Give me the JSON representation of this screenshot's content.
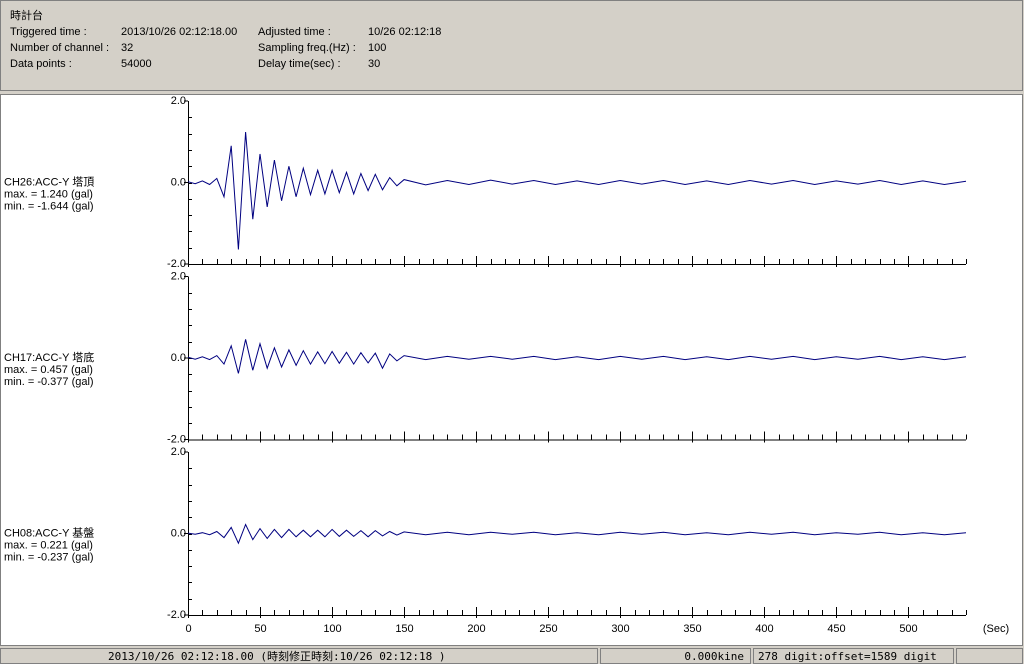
{
  "header": {
    "title": "時計台",
    "fields": [
      [
        "Triggered time :",
        "2013/10/26 02:12:18.00",
        "Adjusted time :",
        "10/26 02:12:18"
      ],
      [
        "Number of channel :",
        "32",
        "Sampling freq.(Hz) :",
        "100"
      ],
      [
        "Data points :",
        "54000",
        "Delay time(sec) :",
        "30"
      ]
    ]
  },
  "chart_data": [
    {
      "type": "line",
      "channel": "CH26:ACC-Y 塔頂",
      "max_label": "max. = 1.240 (gal)",
      "min_label": "min. = -1.644 (gal)",
      "color": "#000080",
      "ylim": [
        -2.0,
        2.0
      ],
      "yticks": [
        {
          "value": 2.0,
          "label": "2.0"
        },
        {
          "value": 0.0,
          "label": "0.0"
        },
        {
          "value": -2.0,
          "label": "-2.0"
        }
      ],
      "xlim": [
        0,
        540
      ],
      "xticks": [
        0,
        50,
        100,
        150,
        200,
        250,
        300,
        350,
        400,
        450,
        500
      ],
      "x": [
        0,
        5,
        10,
        15,
        20,
        25,
        30,
        35,
        40,
        45,
        50,
        55,
        60,
        65,
        70,
        75,
        80,
        85,
        90,
        95,
        100,
        105,
        110,
        115,
        120,
        125,
        130,
        135,
        140,
        145,
        150,
        165,
        180,
        195,
        210,
        225,
        240,
        255,
        270,
        285,
        300,
        315,
        330,
        345,
        360,
        375,
        390,
        405,
        420,
        435,
        450,
        465,
        480,
        495,
        510,
        525,
        540
      ],
      "values": [
        0.02,
        -0.03,
        0.04,
        -0.05,
        0.1,
        -0.35,
        0.9,
        -1.644,
        1.24,
        -0.9,
        0.7,
        -0.6,
        0.55,
        -0.45,
        0.4,
        -0.35,
        0.35,
        -0.3,
        0.3,
        -0.28,
        0.3,
        -0.25,
        0.25,
        -0.28,
        0.22,
        -0.2,
        0.2,
        -0.18,
        0.12,
        -0.08,
        0.07,
        -0.06,
        0.05,
        -0.05,
        0.06,
        -0.04,
        0.05,
        -0.05,
        0.04,
        -0.05,
        0.05,
        -0.04,
        0.05,
        -0.05,
        0.04,
        -0.05,
        0.05,
        -0.04,
        0.05,
        -0.05,
        0.04,
        -0.04,
        0.05,
        -0.05,
        0.04,
        -0.05,
        0.03
      ]
    },
    {
      "type": "line",
      "channel": "CH17:ACC-Y 塔底",
      "max_label": "max. = 0.457 (gal)",
      "min_label": "min. = -0.377 (gal)",
      "color": "#000080",
      "ylim": [
        -2.0,
        2.0
      ],
      "yticks": [
        {
          "value": 2.0,
          "label": "2.0"
        },
        {
          "value": 0.0,
          "label": "0.0"
        },
        {
          "value": -2.0,
          "label": "-2.0"
        }
      ],
      "xlim": [
        0,
        540
      ],
      "xticks": [
        0,
        50,
        100,
        150,
        200,
        250,
        300,
        350,
        400,
        450,
        500
      ],
      "x": [
        0,
        5,
        10,
        15,
        20,
        25,
        30,
        35,
        40,
        45,
        50,
        55,
        60,
        65,
        70,
        75,
        80,
        85,
        90,
        95,
        100,
        105,
        110,
        115,
        120,
        125,
        130,
        135,
        140,
        145,
        150,
        165,
        180,
        195,
        210,
        225,
        240,
        255,
        270,
        285,
        300,
        315,
        330,
        345,
        360,
        375,
        390,
        405,
        420,
        435,
        450,
        465,
        480,
        495,
        510,
        525,
        540
      ],
      "values": [
        0.02,
        -0.03,
        0.03,
        -0.04,
        0.06,
        -0.15,
        0.3,
        -0.377,
        0.457,
        -0.3,
        0.35,
        -0.25,
        0.25,
        -0.22,
        0.2,
        -0.18,
        0.18,
        -0.15,
        0.15,
        -0.14,
        0.16,
        -0.13,
        0.14,
        -0.15,
        0.13,
        -0.12,
        0.12,
        -0.25,
        0.1,
        -0.07,
        0.06,
        -0.04,
        0.04,
        -0.03,
        0.04,
        -0.03,
        0.04,
        -0.04,
        0.03,
        -0.04,
        0.04,
        -0.03,
        0.04,
        -0.04,
        0.03,
        -0.04,
        0.04,
        -0.03,
        0.04,
        -0.04,
        0.03,
        -0.03,
        0.04,
        -0.04,
        0.03,
        -0.04,
        0.03
      ]
    },
    {
      "type": "line",
      "channel": "CH08:ACC-Y 基盤",
      "max_label": "max. = 0.221 (gal)",
      "min_label": "min. = -0.237 (gal)",
      "color": "#000080",
      "ylim": [
        -2.0,
        2.0
      ],
      "yticks": [
        {
          "value": 2.0,
          "label": "2.0"
        },
        {
          "value": 0.0,
          "label": "0.0"
        },
        {
          "value": -2.0,
          "label": "-2.0"
        }
      ],
      "xlim": [
        0,
        540
      ],
      "xticks": [
        0,
        50,
        100,
        150,
        200,
        250,
        300,
        350,
        400,
        450,
        500
      ],
      "xlabel": "(Sec)",
      "x": [
        0,
        5,
        10,
        15,
        20,
        25,
        30,
        35,
        40,
        45,
        50,
        55,
        60,
        65,
        70,
        75,
        80,
        85,
        90,
        95,
        100,
        105,
        110,
        115,
        120,
        125,
        130,
        135,
        140,
        145,
        150,
        165,
        180,
        195,
        210,
        225,
        240,
        255,
        270,
        285,
        300,
        315,
        330,
        345,
        360,
        375,
        390,
        405,
        420,
        435,
        450,
        465,
        480,
        495,
        510,
        525,
        540
      ],
      "values": [
        0.01,
        -0.02,
        0.02,
        -0.03,
        0.05,
        -0.1,
        0.15,
        -0.237,
        0.221,
        -0.15,
        0.12,
        -0.12,
        0.1,
        -0.1,
        0.1,
        -0.08,
        0.08,
        -0.08,
        0.08,
        -0.08,
        0.1,
        -0.07,
        0.08,
        -0.07,
        0.07,
        -0.08,
        0.07,
        -0.06,
        0.05,
        -0.04,
        0.04,
        -0.03,
        0.03,
        -0.03,
        0.03,
        -0.02,
        0.03,
        -0.03,
        0.02,
        -0.03,
        0.03,
        -0.02,
        0.03,
        -0.03,
        0.02,
        -0.03,
        0.03,
        -0.02,
        0.03,
        -0.03,
        0.02,
        -0.02,
        0.03,
        -0.03,
        0.02,
        -0.03,
        0.02
      ]
    }
  ],
  "status": [
    "2013/10/26 02:12:18.00  (時刻修正時刻:10/26 02:12:18  )",
    "0.000kine",
    "278 digit:offset=1589 digit"
  ]
}
